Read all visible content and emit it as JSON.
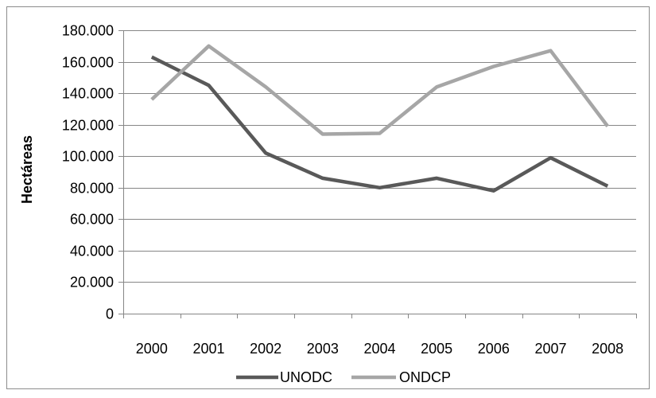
{
  "chart_data": {
    "type": "line",
    "title": "",
    "xlabel": "",
    "ylabel": "Hectáreas",
    "x": [
      "2000",
      "2001",
      "2002",
      "2003",
      "2004",
      "2005",
      "2006",
      "2007",
      "2008"
    ],
    "y_ticks": [
      "0",
      "20.000",
      "40.000",
      "60.000",
      "80.000",
      "100.000",
      "120.000",
      "140.000",
      "160.000",
      "180.000"
    ],
    "ylim": [
      0,
      180000
    ],
    "grid": true,
    "legend_position": "bottom",
    "series": [
      {
        "name": "UNODC",
        "color": "#595959",
        "values": [
          163000,
          145000,
          102000,
          86000,
          80000,
          86000,
          78000,
          99000,
          81000
        ]
      },
      {
        "name": "ONDCP",
        "color": "#a6a6a6",
        "values": [
          136000,
          170000,
          144000,
          114000,
          114500,
          144000,
          157000,
          167000,
          119000
        ]
      }
    ]
  }
}
